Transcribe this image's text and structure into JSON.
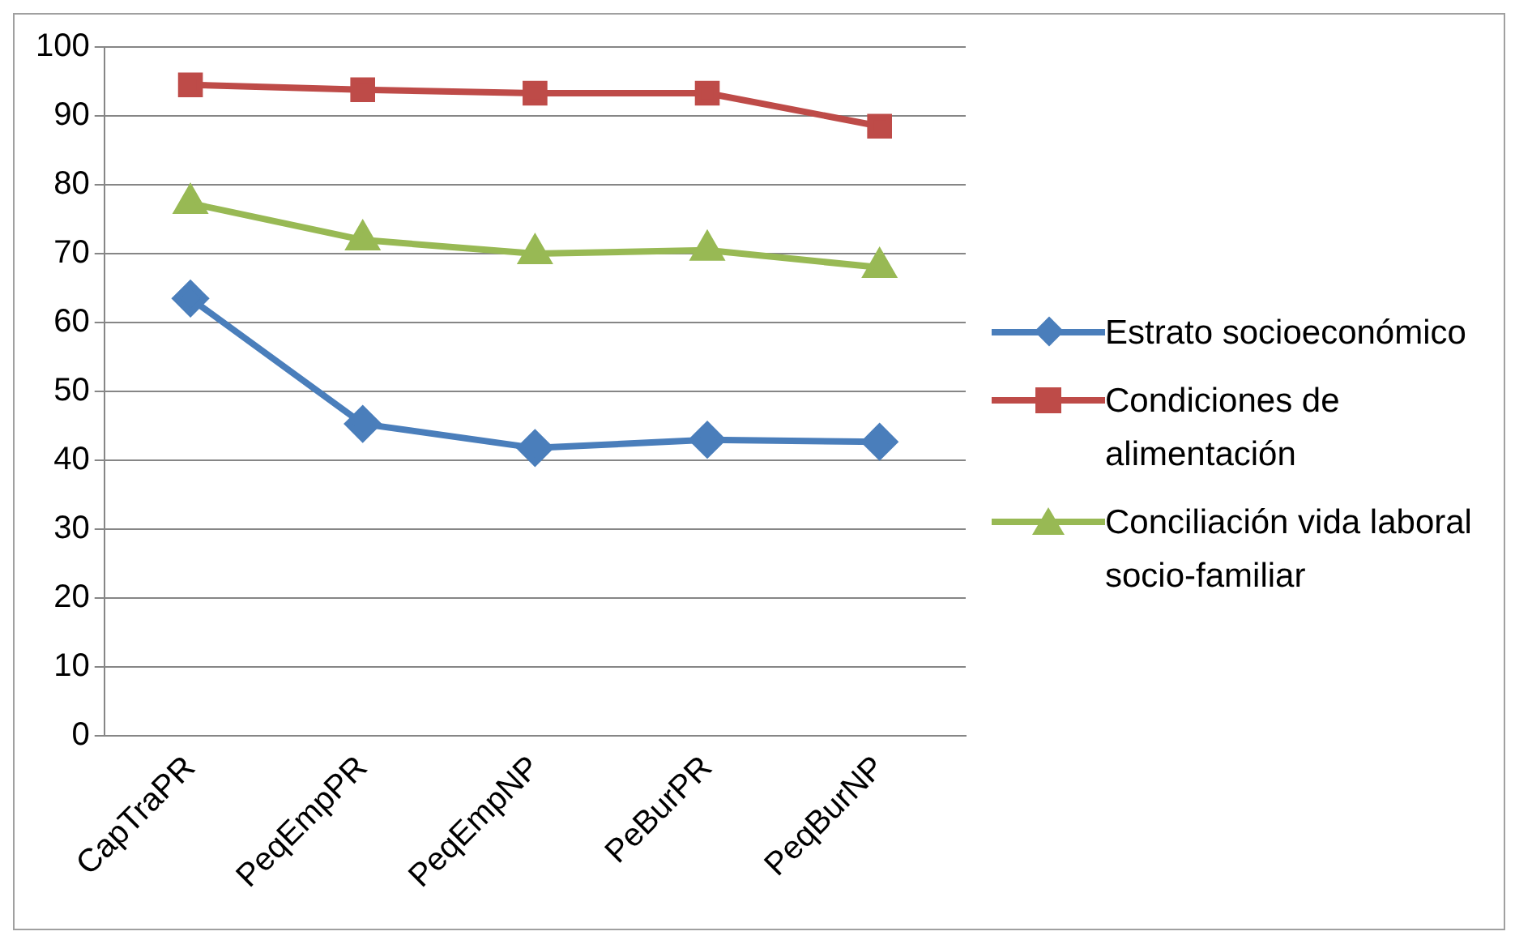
{
  "chart_data": {
    "type": "line",
    "categories": [
      "CapTraPR",
      "PeqEmpPR",
      "PeqEmpNP",
      "PeBurPR",
      "PeqBurNP"
    ],
    "series": [
      {
        "name": "Estrato socioeconómico",
        "color": "#4a7ebb",
        "marker": "diamond",
        "values": [
          63.5,
          45.3,
          41.8,
          43,
          42.7
        ]
      },
      {
        "name": "Condiciones de alimentación",
        "color": "#be4b48",
        "marker": "square",
        "values": [
          94.5,
          93.8,
          93.3,
          93.3,
          88.5
        ]
      },
      {
        "name": "Conciliación vida laboral socio-familiar",
        "color": "#98b954",
        "marker": "triangle",
        "values": [
          77.3,
          72,
          70,
          70.5,
          68
        ]
      }
    ],
    "ylim": [
      0,
      100
    ],
    "yticks": [
      0,
      10,
      20,
      30,
      40,
      50,
      60,
      70,
      80,
      90,
      100
    ],
    "grid": "y",
    "legend": "right",
    "line_style": "solid"
  }
}
